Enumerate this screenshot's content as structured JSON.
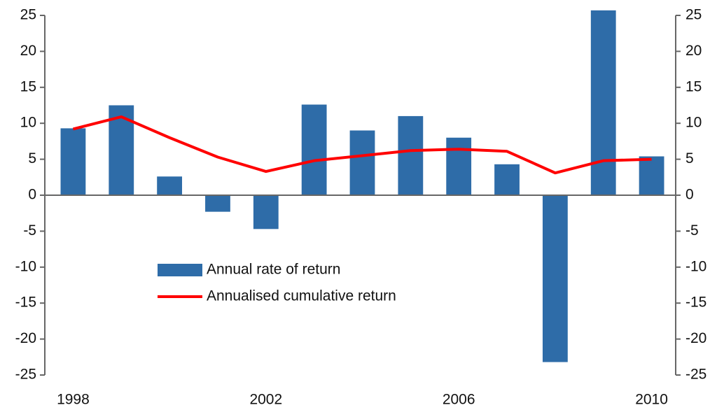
{
  "chart_data": {
    "type": "bar",
    "categories": [
      "1998",
      null,
      null,
      null,
      "2002",
      null,
      null,
      null,
      "2006",
      null,
      null,
      null,
      "2010"
    ],
    "series": [
      {
        "name": "Annual rate of return",
        "type": "bar",
        "color": "#2e6ca8",
        "values": [
          9.3,
          12.5,
          2.6,
          -2.3,
          -4.7,
          12.6,
          9.0,
          11.0,
          8.0,
          4.3,
          -23.2,
          25.7,
          5.4
        ]
      },
      {
        "name": "Annualised cumulative return",
        "type": "line",
        "color": "#ff0000",
        "axis": "y2",
        "values": [
          9.2,
          10.9,
          8.0,
          5.3,
          3.3,
          4.8,
          5.5,
          6.2,
          6.4,
          6.1,
          3.1,
          4.8,
          5.0
        ]
      }
    ],
    "ylim": [
      -25,
      25
    ],
    "yticks": [
      -25,
      -20,
      -15,
      -10,
      -5,
      0,
      5,
      10,
      15,
      20,
      25
    ],
    "y2lim": [
      -25,
      25
    ],
    "y2ticks": [
      -25,
      -20,
      -15,
      -10,
      -5,
      0,
      5,
      10,
      15,
      20,
      25
    ],
    "legend": "center-left"
  }
}
